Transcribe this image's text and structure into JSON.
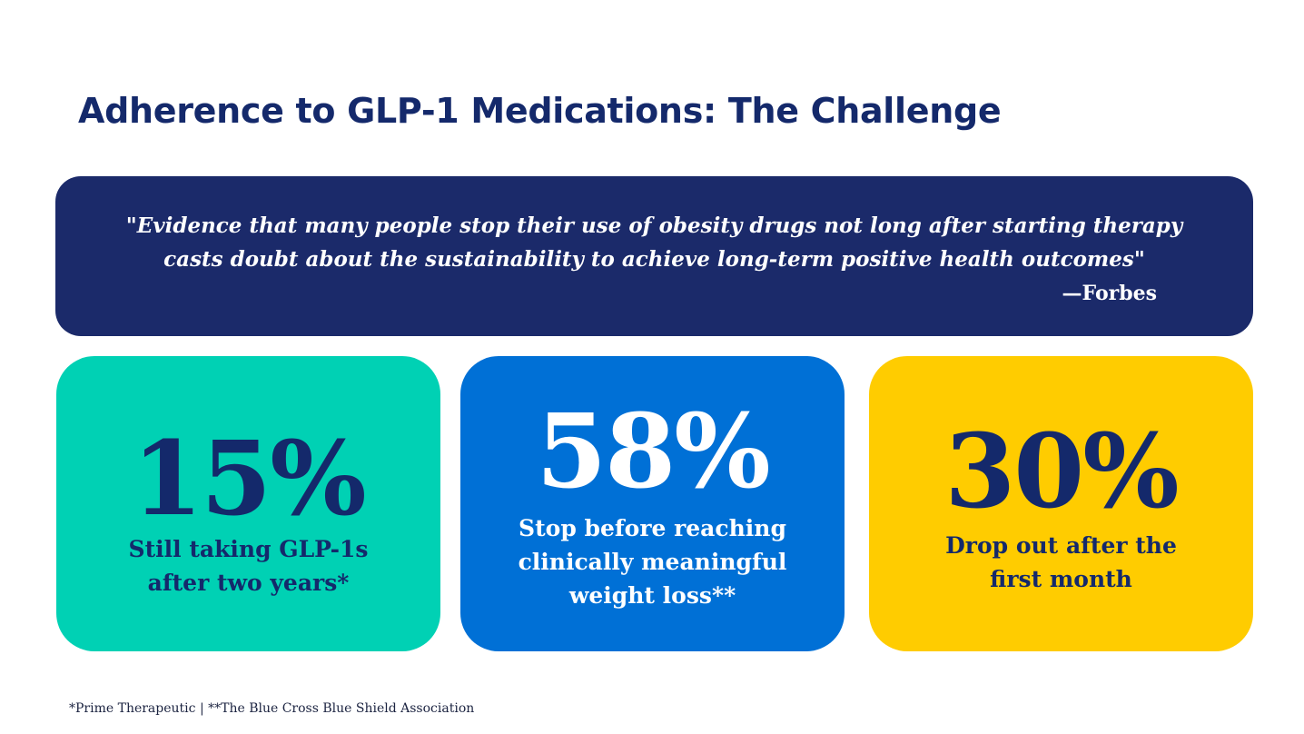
{
  "title": "Adherence to GLP-1 Medications: The Challenge",
  "quote": {
    "line1": "\"Evidence that many people stop their use of obesity drugs not long after starting therapy",
    "line2": "casts doubt about the sustainability to achieve long-term positive health outcomes\"",
    "source": "—Forbes"
  },
  "stats": [
    {
      "value": "15%",
      "line1": "Still taking GLP-1s",
      "line2": "after two years*",
      "line3": ""
    },
    {
      "value": "58%",
      "line1": "Stop before reaching",
      "line2": "clinically meaningful",
      "line3": "weight loss**"
    },
    {
      "value": "30%",
      "line1": "Drop out after the",
      "line2": "first month",
      "line3": ""
    }
  ],
  "colors": {
    "navy": "#1b2a6a",
    "teal": "#00d1b4",
    "blue": "#0070d6",
    "yellow": "#ffcc00"
  },
  "footnote": "*Prime Therapeutic | **The Blue Cross Blue Shield Association"
}
